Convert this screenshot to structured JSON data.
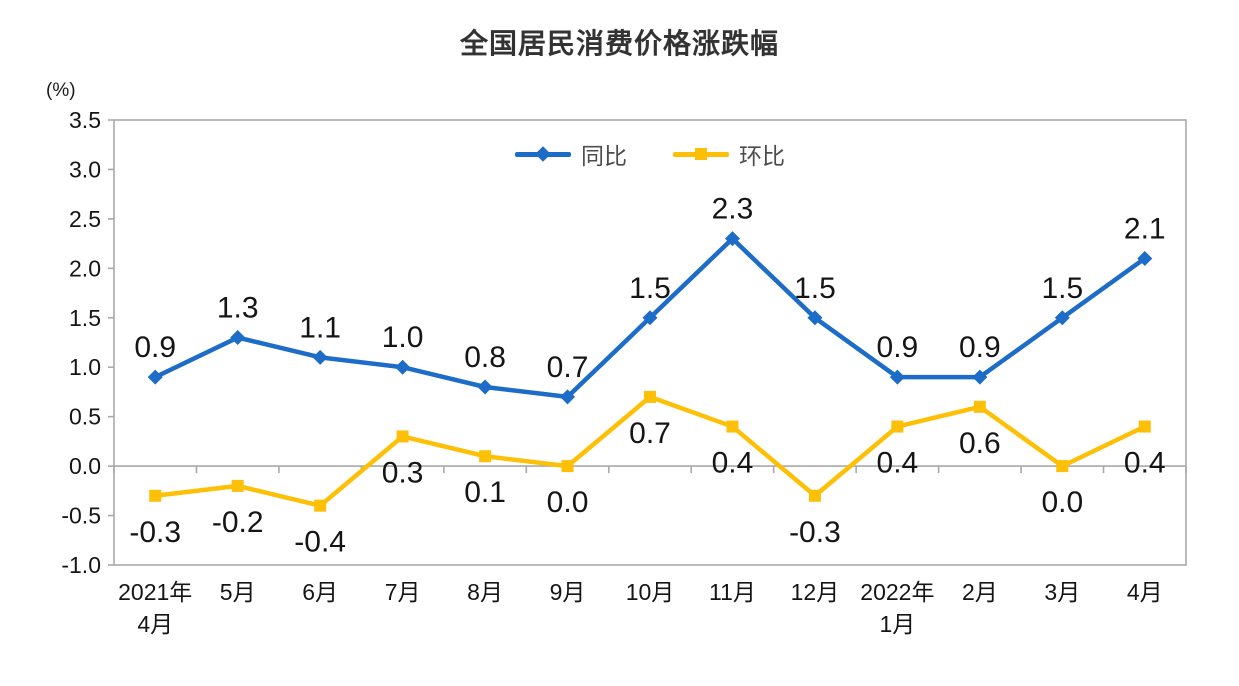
{
  "chart_data": {
    "type": "line",
    "title": "全国居民消费价格涨跌幅",
    "unit_label": "(%)",
    "categories": [
      "2021年|4月",
      "5月",
      "6月",
      "7月",
      "8月",
      "9月",
      "10月",
      "11月",
      "12月",
      "2022年|1月",
      "2月",
      "3月",
      "4月"
    ],
    "series": [
      {
        "name": "同比",
        "color": "#1c6cc8",
        "marker": "diamond",
        "values": [
          0.9,
          1.3,
          1.1,
          1.0,
          0.8,
          0.7,
          1.5,
          2.3,
          1.5,
          0.9,
          0.9,
          1.5,
          2.1
        ]
      },
      {
        "name": "环比",
        "color": "#fdc006",
        "marker": "square",
        "values": [
          -0.3,
          -0.2,
          -0.4,
          0.3,
          0.1,
          0.0,
          0.7,
          0.4,
          -0.3,
          0.4,
          0.6,
          0.0,
          0.4
        ]
      }
    ],
    "y_axis": {
      "min": -1.0,
      "max": 3.5,
      "step": 0.5,
      "tick_labels": [
        "3.5",
        "3.0",
        "2.5",
        "2.0",
        "1.5",
        "1.0",
        "0.5",
        "0.0",
        "-0.5",
        "-1.0"
      ]
    },
    "legend_position": "top-center",
    "grid": false,
    "axis_color": "#a9a9a9",
    "label_color": "#151515"
  }
}
